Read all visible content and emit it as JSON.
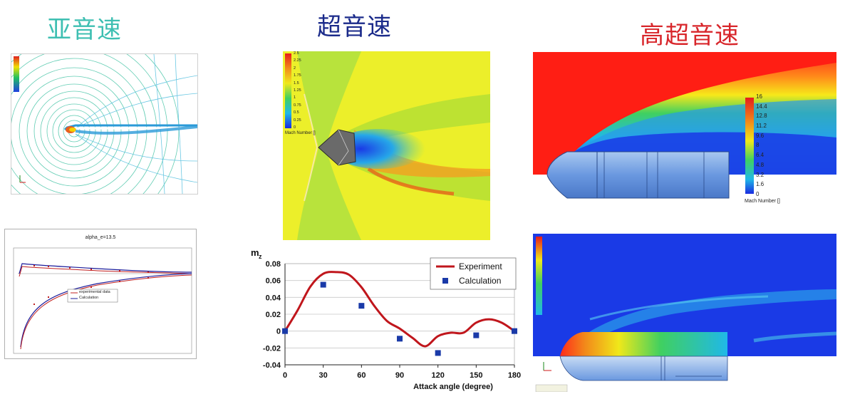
{
  "titles": {
    "subsonic": "亚音速",
    "supersonic": "超音速",
    "hypersonic": "高超音速"
  },
  "colors": {
    "subsonic_title": "#3ebfb2",
    "supersonic_title": "#1a2a8a",
    "hypersonic_title": "#d8262b",
    "experiment_line": "#c0161c",
    "calculation_marker": "#1a3aa8"
  },
  "subsonic_plot": {
    "title": "alpha_e=13.5",
    "legend": [
      "experimental data",
      "Calculation"
    ]
  },
  "supersonic_field": {
    "legend_title": "Mach Number []",
    "ticks": [
      "2.5",
      "2.25",
      "2",
      "1.75",
      "1.5",
      "1.25",
      "1",
      "0.75",
      "0.5",
      "0.25",
      "0"
    ]
  },
  "hypersonic_field": {
    "legend_title": "Mach Number []",
    "ticks": [
      "16",
      "14.4",
      "12.8",
      "11.2",
      "9.6",
      "8",
      "6.4",
      "4.8",
      "3.2",
      "1.6",
      "0"
    ]
  },
  "chart_data": {
    "type": "line",
    "ylabel_main": "m",
    "ylabel_sub": "z",
    "xlabel": "Attack angle (degree)",
    "x_ticks": [
      0,
      30,
      60,
      90,
      120,
      150,
      180
    ],
    "y_ticks": [
      "0.08",
      "0.06",
      "0.04",
      "0.02",
      "0",
      "-0.02",
      "-0.04"
    ],
    "xlim": [
      0,
      180
    ],
    "ylim": [
      -0.04,
      0.08
    ],
    "grid": "horizontal",
    "legend_position": "top-right",
    "series": [
      {
        "name": "Experiment",
        "kind": "line",
        "x": [
          0,
          10,
          20,
          30,
          40,
          50,
          60,
          70,
          80,
          90,
          100,
          110,
          120,
          130,
          140,
          150,
          160,
          170,
          180
        ],
        "y": [
          0,
          0.025,
          0.053,
          0.068,
          0.07,
          0.067,
          0.052,
          0.03,
          0.012,
          0.003,
          -0.008,
          -0.018,
          -0.006,
          -0.002,
          -0.002,
          0.01,
          0.014,
          0.01,
          0
        ]
      },
      {
        "name": "Calculation",
        "kind": "marker",
        "x": [
          0,
          30,
          60,
          90,
          120,
          150,
          180
        ],
        "y": [
          0,
          0.055,
          0.03,
          -0.009,
          -0.026,
          -0.005,
          0
        ]
      }
    ]
  }
}
